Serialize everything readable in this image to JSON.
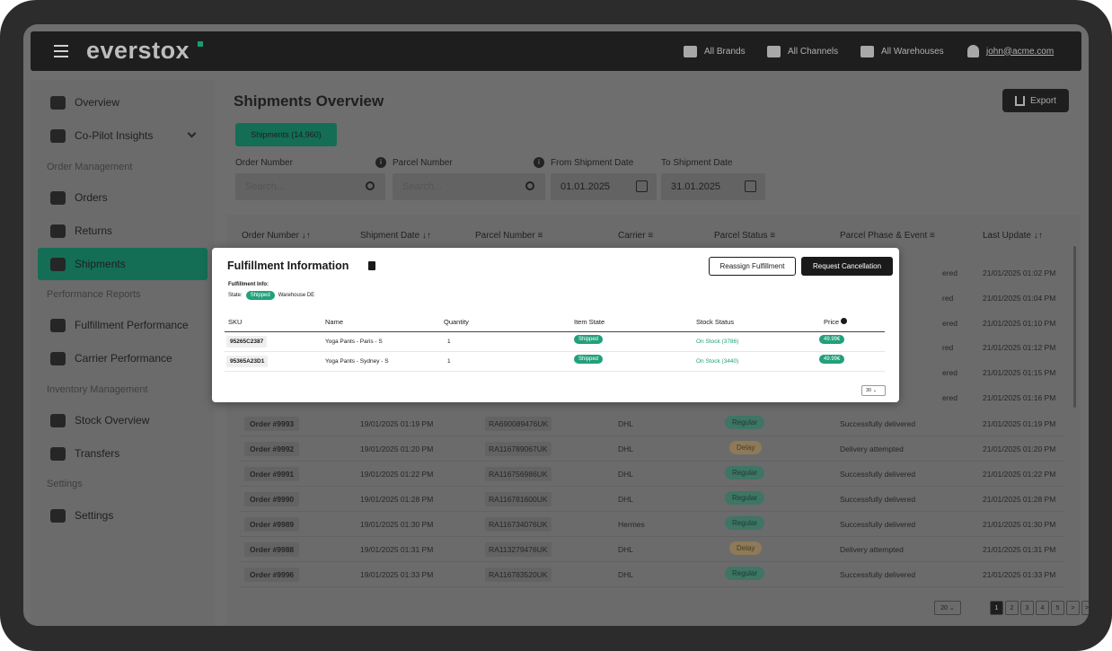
{
  "app": {
    "logo": "everstox",
    "brand_color": "#136e55"
  },
  "topnav": {
    "brands": "All Brands",
    "channels": "All Channels",
    "warehouses": "All Warehouses",
    "user": "john@acme.com"
  },
  "sidebar": {
    "overview": "Overview",
    "copilot": "Co-Pilot Insights",
    "order_management": "Order Management",
    "orders": "Orders",
    "returns": "Returns",
    "shipments": "Shipments",
    "performance_reports": "Performance Reports",
    "fulfillment_performance": "Fulfillment Performance",
    "carrier_performance": "Carrier Performance",
    "inventory_management": "Inventory Management",
    "stock_overview": "Stock Overview",
    "transfers": "Transfers",
    "settings_head": "Settings",
    "settings": "Settings"
  },
  "main": {
    "title": "Shipments Overview",
    "export": "Export",
    "tab": "Shipments (14,960)"
  },
  "filters": {
    "order_number_label": "Order Number",
    "parcel_number_label": "Parcel Number",
    "from_date_label": "From Shipment Date",
    "to_date_label": "To Shipment Date",
    "search_placeholder": "Search...",
    "from_date": "01.01.2025",
    "to_date": "31.01.2025"
  },
  "table": {
    "headers": {
      "order_number": "Order Number",
      "shipment_date": "Shipment Date",
      "parcel_number": "Parcel Number",
      "carrier": "Carrier",
      "parcel_status": "Parcel Status",
      "phase_event": "Parcel Phase & Event",
      "last_update": "Last Update"
    },
    "visible_last_update": [
      "21/01/2025 01:02 PM",
      "21/01/2025 01:04 PM",
      "21/01/2025 01:10 PM",
      "21/01/2025 01:12 PM",
      "21/01/2025 01:15 PM",
      "21/01/2025 01:16 PM"
    ],
    "partial_phase": [
      "ered",
      "red",
      "ered",
      "red",
      "ered",
      "ered"
    ],
    "rows": [
      {
        "order": "Order #9993",
        "date": "19/01/2025 01:19 PM",
        "parcel": "RA690089476UK",
        "carrier": "DHL",
        "status": "Regular",
        "event": "Successfully delivered",
        "update": "21/01/2025 01:19 PM"
      },
      {
        "order": "Order #9992",
        "date": "19/01/2025 01:20 PM",
        "parcel": "RA116789067UK",
        "carrier": "DHL",
        "status": "Delay",
        "event": "Delivery attempted",
        "update": "21/01/2025 01:20 PM"
      },
      {
        "order": "Order #9991",
        "date": "19/01/2025 01:22 PM",
        "parcel": "RA116756986UK",
        "carrier": "DHL",
        "status": "Regular",
        "event": "Successfully delivered",
        "update": "21/01/2025 01:22 PM"
      },
      {
        "order": "Order #9990",
        "date": "19/01/2025 01:28 PM",
        "parcel": "RA116781600UK",
        "carrier": "DHL",
        "status": "Regular",
        "event": "Successfully delivered",
        "update": "21/01/2025 01:28 PM"
      },
      {
        "order": "Order #9989",
        "date": "19/01/2025 01:30 PM",
        "parcel": "RA116734076UK",
        "carrier": "Hermes",
        "status": "Regular",
        "event": "Successfully delivered",
        "update": "21/01/2025 01:30 PM"
      },
      {
        "order": "Order #9988",
        "date": "19/01/2025 01:31 PM",
        "parcel": "RA113279476UK",
        "carrier": "DHL",
        "status": "Delay",
        "event": "Delivery attempted",
        "update": "21/01/2025 01:31 PM"
      },
      {
        "order": "Order #9996",
        "date": "19/01/2025 01:33 PM",
        "parcel": "RA116783520UK",
        "carrier": "DHL",
        "status": "Regular",
        "event": "Successfully delivered",
        "update": "21/01/2025 01:33 PM"
      }
    ]
  },
  "pager": {
    "per_page": "20",
    "pages": [
      "1",
      "2",
      "3",
      "4",
      "5"
    ],
    "next": ">",
    "last": ">>"
  },
  "modal": {
    "title": "Fulfillment Information",
    "reassign": "Reassign Fulfillment",
    "cancel": "Request Cancellation",
    "info_label": "Fulfillment Info:",
    "state_label": "State:",
    "state_value": "Shipped",
    "warehouse": "Warehouse DE",
    "headers": {
      "sku": "SKU",
      "name": "Name",
      "quantity": "Quantity",
      "item_state": "Item State",
      "stock_status": "Stock Status",
      "price": "Price"
    },
    "rows": [
      {
        "sku": "95265C2387",
        "name": "Yoga Pants - Paris - S",
        "qty": "1",
        "state": "Shipped",
        "stock": "On Stock (3786)",
        "price": "49.99€"
      },
      {
        "sku": "95365A23D1",
        "name": "Yoga Pants - Sydney - S",
        "qty": "1",
        "state": "Shipped",
        "stock": "On Stock (3440)",
        "price": "49.99€"
      }
    ],
    "per_page": "30"
  }
}
